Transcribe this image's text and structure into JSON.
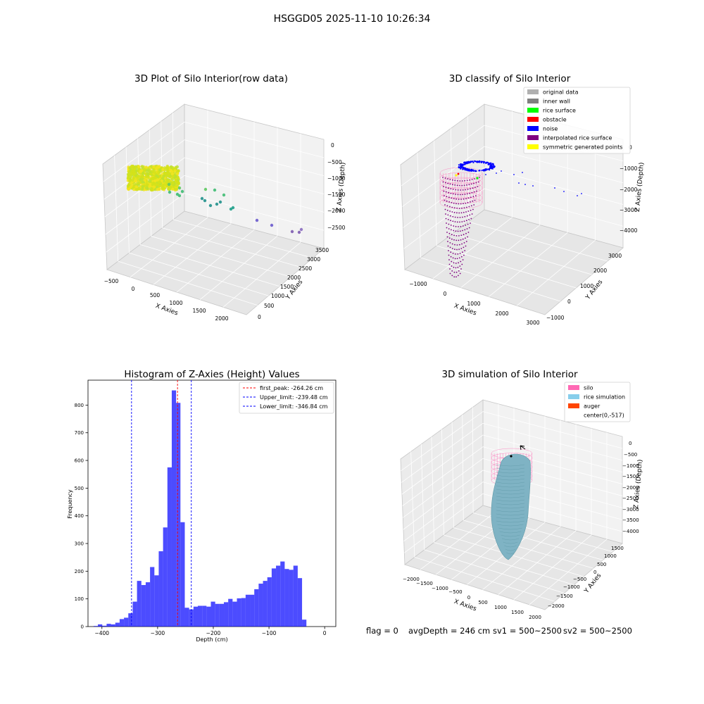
{
  "figure": {
    "suptitle": "HSGGD05 2025-11-10 10:26:34",
    "footer": {
      "flag": "flag = 0",
      "avg": "avgDepth = 246 cm",
      "sv1": "sv1 = 500~2500",
      "sv2": "sv2 = 500~2500"
    }
  },
  "chart_data": [
    {
      "type": "scatter",
      "title": "3D Plot of Silo Interior(row data)",
      "xlabel": "X Axies",
      "ylabel": "Y Axies",
      "zlabel": "Z Axies (Depth)",
      "x_ticks": [
        "−500",
        "0",
        "500",
        "1000",
        "1500",
        "2000"
      ],
      "y_ticks": [
        "0",
        "500",
        "1000",
        "1500",
        "2000",
        "2500",
        "3000",
        "3500"
      ],
      "z_ticks": [
        "0",
        "−500",
        "−1000",
        "−1500",
        "−2000",
        "−2500"
      ],
      "colormap": "viridis",
      "clusters": [
        {
          "description_color": "#c8e020",
          "x_range": [
            -300,
            100
          ],
          "y_range": [
            0,
            300
          ],
          "z_range": [
            -400,
            -100
          ]
        },
        {
          "description_color": "#5ec962",
          "x_range": [
            100,
            700
          ],
          "y_range": [
            500,
            1500
          ],
          "z_range": [
            -1500,
            -1000
          ]
        },
        {
          "description_color": "#21918c",
          "x_range": [
            700,
            1200
          ],
          "y_range": [
            1500,
            2500
          ],
          "z_range": [
            -2200,
            -1800
          ]
        },
        {
          "description_color": "#6a5acd",
          "x_range": [
            1500,
            2200
          ],
          "y_range": [
            2500,
            3500
          ],
          "z_range": [
            -2700,
            -2300
          ]
        }
      ]
    },
    {
      "type": "scatter",
      "title": "3D classify of Silo Interior",
      "xlabel": "X Axies",
      "ylabel": "Y Axies",
      "zlabel": "Z Axies (Depth)",
      "x_ticks": [
        "−1000",
        "0",
        "1000",
        "2000",
        "3000"
      ],
      "y_ticks": [
        "−1000",
        "0",
        "1000",
        "2000",
        "3000"
      ],
      "z_ticks": [
        "0",
        "−1000",
        "−2000",
        "−3000",
        "−4000"
      ],
      "legend_position": "top-right",
      "legend": [
        {
          "label": "original data",
          "color": "#b0b0b0"
        },
        {
          "label": "inner wall",
          "color": "#808080"
        },
        {
          "label": "rice surface",
          "color": "#00ff00"
        },
        {
          "label": "obstacle",
          "color": "#ff0000"
        },
        {
          "label": "noise",
          "color": "#0000ff"
        },
        {
          "label": "interpolated rice surface",
          "color": "#800080"
        },
        {
          "label": "symmetric generated points",
          "color": "#ffff00"
        }
      ]
    },
    {
      "type": "bar",
      "title": "Histogram of Z-Axies (Height) Values",
      "xlabel": "Depth (cm)",
      "ylabel": "Frequency",
      "xlim": [
        -425,
        20
      ],
      "ylim": [
        0,
        890
      ],
      "bin_width": 7.8,
      "bin_start": -415,
      "bar_color": "#0000ff",
      "bar_opacity": 0.7,
      "x_ticks": [
        {
          "v": -400,
          "t": "−400"
        },
        {
          "v": -300,
          "t": "−300"
        },
        {
          "v": -200,
          "t": "−200"
        },
        {
          "v": -100,
          "t": "−100"
        },
        {
          "v": 0,
          "t": "0"
        }
      ],
      "y_ticks": [
        0,
        100,
        200,
        300,
        400,
        500,
        600,
        700,
        800
      ],
      "values": [
        2,
        8,
        3,
        10,
        8,
        14,
        27,
        32,
        48,
        90,
        165,
        150,
        160,
        215,
        185,
        272,
        358,
        575,
        853,
        808,
        377,
        68,
        62,
        72,
        75,
        75,
        72,
        90,
        82,
        82,
        88,
        100,
        90,
        102,
        103,
        115,
        115,
        135,
        155,
        165,
        178,
        210,
        220,
        235,
        208,
        205,
        220,
        175,
        25
      ],
      "lines": [
        {
          "label": "first_peak: -264.26 cm",
          "x": -264.26,
          "color": "#ff0000"
        },
        {
          "label": "Upper_limit: -239.48 cm",
          "x": -239.48,
          "color": "#0000ff"
        },
        {
          "label": "Lower_limit: -346.84 cm",
          "x": -346.84,
          "color": "#0000ff"
        }
      ],
      "legend_position": "top-right"
    },
    {
      "type": "scatter",
      "title": "3D simulation of Silo Interior",
      "xlabel": "X Axies",
      "ylabel": "Y Axies",
      "zlabel": "Z Axies (Depth)",
      "x_ticks": [
        "−2000",
        "−1500",
        "−1000",
        "−500",
        "0",
        "500",
        "1000",
        "1500",
        "2000"
      ],
      "y_ticks": [
        "−2000",
        "−1500",
        "−1000",
        "−500",
        "0",
        "500",
        "1000",
        "1500"
      ],
      "z_ticks": [
        "0",
        "−500",
        "−1000",
        "−1500",
        "−2000",
        "−2500",
        "−3000",
        "−3500",
        "−4000"
      ],
      "legend_position": "top-right",
      "legend": [
        {
          "label": "silo",
          "color": "#ff69b4"
        },
        {
          "label": "rice simulation",
          "color": "#87ceeb"
        },
        {
          "label": "auger",
          "color": "#ff4500"
        },
        {
          "label": "center(0,-517)",
          "color": "none"
        }
      ]
    }
  ]
}
